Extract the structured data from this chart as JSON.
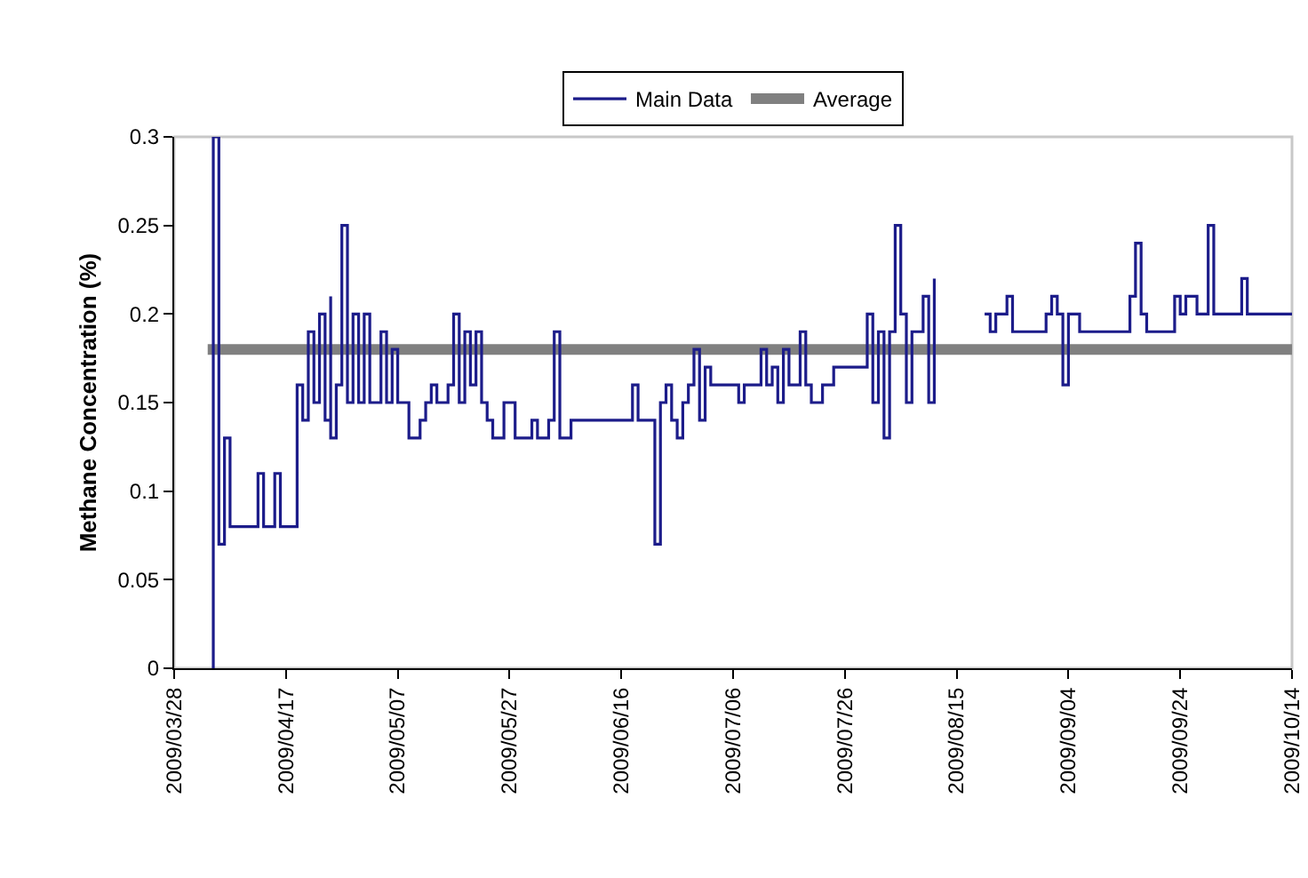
{
  "chart_data": {
    "type": "step",
    "ylabel": "Methane Concentration (%)",
    "xlim": [
      "2009-03-28",
      "2009-10-14"
    ],
    "xticks": [
      {
        "value": "2009-03-28",
        "label": "2009/03/28"
      },
      {
        "value": "2009-04-17",
        "label": "2009/04/17"
      },
      {
        "value": "2009-05-07",
        "label": "2009/05/07"
      },
      {
        "value": "2009-05-27",
        "label": "2009/05/27"
      },
      {
        "value": "2009-06-16",
        "label": "2009/06/16"
      },
      {
        "value": "2009-07-06",
        "label": "2009/07/06"
      },
      {
        "value": "2009-07-26",
        "label": "2009/07/26"
      },
      {
        "value": "2009-08-15",
        "label": "2009/08/15"
      },
      {
        "value": "2009-09-04",
        "label": "2009/09/04"
      },
      {
        "value": "2009-09-24",
        "label": "2009/09/24"
      },
      {
        "value": "2009-10-14",
        "label": "2009/10/14"
      }
    ],
    "ylim": [
      0,
      0.3
    ],
    "yticks": [
      0,
      0.05,
      0.1,
      0.15,
      0.2,
      0.25,
      0.3
    ],
    "grid": false,
    "legend": "top",
    "marker": "none",
    "line_style": "solid",
    "series": [
      {
        "name": "Main Data",
        "color": "#1c1c8a",
        "x": [
          "2009-04-04",
          "2009-04-04",
          "2009-04-05",
          "2009-04-06",
          "2009-04-07",
          "2009-04-12",
          "2009-04-13",
          "2009-04-15",
          "2009-04-16",
          "2009-04-19",
          "2009-04-20",
          "2009-04-21",
          "2009-04-22",
          "2009-04-23",
          "2009-04-24",
          "2009-04-25",
          "2009-04-25",
          "2009-04-26",
          "2009-04-27",
          "2009-04-28",
          "2009-04-29",
          "2009-04-30",
          "2009-05-01",
          "2009-05-02",
          "2009-05-04",
          "2009-05-05",
          "2009-05-06",
          "2009-05-07",
          "2009-05-09",
          "2009-05-11",
          "2009-05-12",
          "2009-05-13",
          "2009-05-14",
          "2009-05-16",
          "2009-05-17",
          "2009-05-18",
          "2009-05-19",
          "2009-05-20",
          "2009-05-21",
          "2009-05-22",
          "2009-05-23",
          "2009-05-24",
          "2009-05-26",
          "2009-05-28",
          "2009-05-31",
          "2009-06-01",
          "2009-06-03",
          "2009-06-04",
          "2009-06-05",
          "2009-06-07",
          "2009-06-18",
          "2009-06-19",
          "2009-06-22",
          "2009-06-23",
          "2009-06-24",
          "2009-06-25",
          "2009-06-26",
          "2009-06-27",
          "2009-06-28",
          "2009-06-29",
          "2009-06-30",
          "2009-07-01",
          "2009-07-02",
          "2009-07-07",
          "2009-07-08",
          "2009-07-11",
          "2009-07-12",
          "2009-07-13",
          "2009-07-14",
          "2009-07-15",
          "2009-07-16",
          "2009-07-18",
          "2009-07-19",
          "2009-07-20",
          "2009-07-22",
          "2009-07-24",
          "2009-07-30",
          "2009-07-31",
          "2009-08-01",
          "2009-08-02",
          "2009-08-03",
          "2009-08-04",
          "2009-08-05",
          "2009-08-06",
          "2009-08-07",
          "2009-08-09",
          "2009-08-10",
          "2009-08-11",
          "2009-08-12",
          "2009-08-20",
          "2009-08-21",
          "2009-08-22",
          "2009-08-24",
          "2009-08-25",
          "2009-08-31",
          "2009-09-01",
          "2009-09-02",
          "2009-09-03",
          "2009-09-04",
          "2009-09-06",
          "2009-09-15",
          "2009-09-16",
          "2009-09-17",
          "2009-09-18",
          "2009-09-23",
          "2009-09-24",
          "2009-09-25",
          "2009-09-27",
          "2009-09-29",
          "2009-09-30",
          "2009-10-05",
          "2009-10-06",
          "2009-10-14"
        ],
        "values": [
          0,
          0.3,
          0.07,
          0.13,
          0.08,
          0.11,
          0.08,
          0.11,
          0.08,
          0.16,
          0.14,
          0.19,
          0.15,
          0.2,
          0.14,
          0.21,
          0.13,
          0.16,
          0.25,
          0.15,
          0.2,
          0.15,
          0.2,
          0.15,
          0.19,
          0.15,
          0.18,
          0.15,
          0.13,
          0.14,
          0.15,
          0.16,
          0.15,
          0.16,
          0.2,
          0.15,
          0.19,
          0.16,
          0.19,
          0.15,
          0.14,
          0.13,
          0.15,
          0.13,
          0.14,
          0.13,
          0.14,
          0.19,
          0.13,
          0.14,
          0.16,
          0.14,
          0.07,
          0.15,
          0.16,
          0.14,
          0.13,
          0.15,
          0.16,
          0.18,
          0.14,
          0.17,
          0.16,
          0.15,
          0.16,
          0.18,
          0.16,
          0.17,
          0.15,
          0.18,
          0.16,
          0.19,
          0.16,
          0.15,
          0.16,
          0.17,
          0.2,
          0.15,
          0.19,
          0.13,
          0.19,
          0.25,
          0.2,
          0.15,
          0.19,
          0.21,
          0.15,
          0.22,
          null,
          0.2,
          0.19,
          0.2,
          0.21,
          0.19,
          0.2,
          0.21,
          0.2,
          0.16,
          0.2,
          0.19,
          0.21,
          0.24,
          0.2,
          0.19,
          0.21,
          0.2,
          0.21,
          0.2,
          0.25,
          0.2,
          0.22,
          0.2,
          0.2
        ]
      },
      {
        "name": "Average",
        "type": "line",
        "color": "#808080",
        "x": [
          "2009-04-03",
          "2009-10-14"
        ],
        "values": [
          0.18,
          0.18
        ]
      }
    ]
  }
}
